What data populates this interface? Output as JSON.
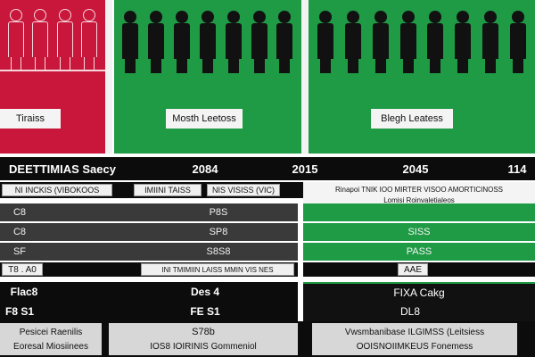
{
  "panels": {
    "red_label": "Tiraiss",
    "green1_label": "Mosth Leetoss",
    "green2_label": "Blegh Leatess"
  },
  "header_row": {
    "c1": "DEETTIMIAS Saecy",
    "c2": "2084",
    "c3": "2015",
    "c4": "2045",
    "c5": "114"
  },
  "subheader_row": {
    "c1": "NI INCKIS (VIBOKOOS",
    "c2": "IMIINI TAISS",
    "c3": "NIS VISISS (VIC)",
    "c4": "Rinapoi TNIK IOO MIRTER VISOO AMORTICINOSS",
    "c5": "Lomisi Roinvaletialeos"
  },
  "rows": [
    {
      "left": "C8",
      "mid": "P8S",
      "right": ""
    },
    {
      "left": "C8",
      "mid": "SP8",
      "right": "SISS"
    },
    {
      "left": "SF",
      "mid": "S8S8",
      "right": "PASS"
    },
    {
      "left": "T8 . A0",
      "mid": "INI TMIMIIN LAISS MMIN VIS NES",
      "right": "AAE"
    }
  ],
  "section_rows": [
    {
      "left": "Flac8",
      "mid": "Des 4",
      "right": "FIXA Cakg"
    },
    {
      "left": "F8 S1",
      "mid": "FE S1",
      "right": "DL8"
    }
  ],
  "bottom_row": {
    "left_top": "Pesicei Raenilis",
    "left_bottom": "Eoresal Miosiinees",
    "mid_top": "S78b",
    "mid_bottom": "IOS8 IOIRINIS Gommeniol",
    "right_top": "Vwsmbanibase ILGIMSS (Leitsiess",
    "right_bottom": "OOISNOIIMKEUS Fonemess"
  },
  "colors": {
    "red": "#c8173a",
    "green": "#1f9a45",
    "black": "#0c0c0c",
    "gray": "#3a3a3a"
  }
}
